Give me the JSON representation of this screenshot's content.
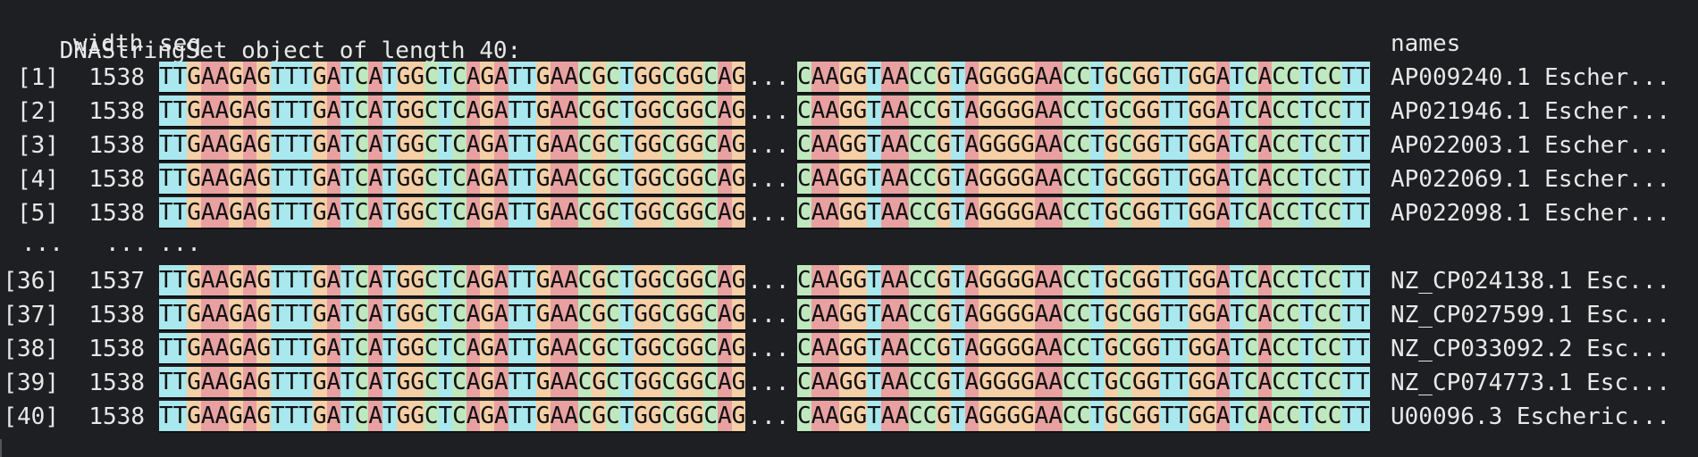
{
  "header": {
    "title": "DNAStringSet object of length 40:",
    "col_width": "width",
    "col_seq": "seq",
    "col_names": "names"
  },
  "colors": {
    "A": "#e8a0a0",
    "C": "#bfe8bf",
    "G": "#f5cfa6",
    "T": "#a8e8ee",
    "background": "#1e1f22",
    "text": "#e8e8e8"
  },
  "seq_head": "TTGAAGAGTTTGATCATGGCTCAGATTGAACGCTGGCGGCAG",
  "seq_tail": "CAAGGTAACCGTAGGGGAACCTGCGGTTGGATCACCTCCTT",
  "seq_gap": "...",
  "rows_top": [
    {
      "index": "[1]",
      "width": "1538",
      "name": "AP009240.1 Escher..."
    },
    {
      "index": "[2]",
      "width": "1538",
      "name": "AP021946.1 Escher..."
    },
    {
      "index": "[3]",
      "width": "1538",
      "name": "AP022003.1 Escher..."
    },
    {
      "index": "[4]",
      "width": "1538",
      "name": "AP022069.1 Escher..."
    },
    {
      "index": "[5]",
      "width": "1538",
      "name": "AP022098.1 Escher..."
    }
  ],
  "elision": {
    "index": "...",
    "width": "...",
    "seq": "..."
  },
  "rows_bottom": [
    {
      "index": "[36]",
      "width": "1537",
      "name": "NZ_CP024138.1 Esc..."
    },
    {
      "index": "[37]",
      "width": "1538",
      "name": "NZ_CP027599.1 Esc..."
    },
    {
      "index": "[38]",
      "width": "1538",
      "name": "NZ_CP033092.2 Esc..."
    },
    {
      "index": "[39]",
      "width": "1538",
      "name": "NZ_CP074773.1 Esc..."
    },
    {
      "index": "[40]",
      "width": "1538",
      "name": "U00096.3 Escheric..."
    }
  ]
}
